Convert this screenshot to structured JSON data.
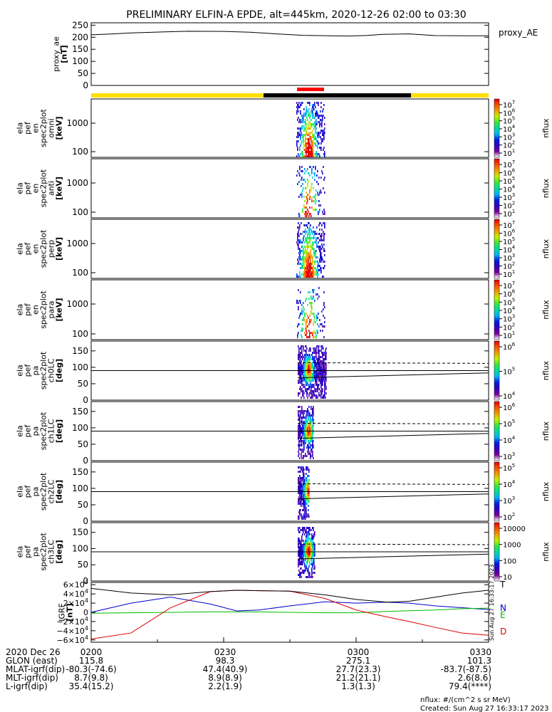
{
  "title": "PRELIMINARY ELFIN-A EPDE, alt=445km, 2020-12-26 02:00 to 03:30",
  "colors": {
    "science_zone": "#ff0000",
    "sunlit_bar": "#ffe000",
    "shadow_bar": "#000000",
    "trace": "#000000",
    "igrf_n": "#0000cc",
    "igrf_e": "#00bb00",
    "igrf_d": "#dd0000"
  },
  "chart_data": [
    {
      "type": "line",
      "id": "proxy_ae",
      "ylabel": [
        "proxy_ae",
        "[nT]"
      ],
      "legend": "proxy_AE",
      "ylim": [
        0,
        260
      ],
      "yticks": [
        "250",
        "200",
        "150",
        "100",
        "50",
        "0"
      ],
      "x_minutes": [
        0,
        4,
        9,
        16,
        22,
        30,
        36,
        42,
        48,
        54,
        58,
        62,
        66,
        72,
        78,
        84,
        90
      ],
      "values": [
        210,
        213,
        218,
        222,
        225,
        224,
        221,
        214,
        208,
        206,
        205,
        207,
        212,
        214,
        207,
        206,
        206
      ]
    },
    {
      "type": "heatmap",
      "id": "en_omni",
      "ylabel": [
        "ela",
        "pef",
        "en",
        "spec2plot",
        "omni",
        "[keV]"
      ],
      "ylog": true,
      "yticks": [
        "1000",
        "100"
      ],
      "colorbar": {
        "label": "nflux",
        "ticks": [
          "10^7",
          "10^6",
          "10^5",
          "10^4",
          "10^3",
          "10^2",
          "10^1"
        ]
      }
    },
    {
      "type": "heatmap",
      "id": "en_anti",
      "ylabel": [
        "ela",
        "pef",
        "en",
        "spec2plot",
        "anti",
        "[keV]"
      ],
      "ylog": true,
      "yticks": [
        "1000",
        "100"
      ],
      "colorbar": {
        "label": "nflux",
        "ticks": [
          "10^7",
          "10^6",
          "10^5",
          "10^4",
          "10^3",
          "10^2",
          "10^1"
        ]
      }
    },
    {
      "type": "heatmap",
      "id": "en_perp",
      "ylabel": [
        "ela",
        "pef",
        "en",
        "spec2plot",
        "perp",
        "[keV]"
      ],
      "ylog": true,
      "yticks": [
        "1000",
        "100"
      ],
      "colorbar": {
        "label": "nflux",
        "ticks": [
          "10^7",
          "10^6",
          "10^5",
          "10^4",
          "10^3",
          "10^2",
          "10^1"
        ]
      }
    },
    {
      "type": "heatmap",
      "id": "en_para",
      "ylabel": [
        "ela",
        "pef",
        "en",
        "spec2plot",
        "para",
        "[keV]"
      ],
      "ylog": true,
      "yticks": [
        "1000",
        "100"
      ],
      "colorbar": {
        "label": "nflux",
        "ticks": [
          "10^7",
          "10^6",
          "10^5",
          "10^4",
          "10^3",
          "10^2",
          "10^1"
        ]
      }
    },
    {
      "type": "heatmap",
      "id": "pa_ch0",
      "ylabel": [
        "ela",
        "pef",
        "pa",
        "spec2plot",
        "ch0LC",
        "[deg]"
      ],
      "ylim": [
        0,
        180
      ],
      "yticks": [
        "150",
        "100",
        "50",
        "0"
      ],
      "colorbar": {
        "label": "nflux",
        "ticks": [
          "10^6",
          "10^5",
          "10^4"
        ]
      }
    },
    {
      "type": "heatmap",
      "id": "pa_ch1",
      "ylabel": [
        "ela",
        "pef",
        "pa",
        "spec2plot",
        "ch1LC",
        "[deg]"
      ],
      "ylim": [
        0,
        180
      ],
      "yticks": [
        "150",
        "100",
        "50",
        "0"
      ],
      "colorbar": {
        "label": "nflux",
        "ticks": [
          "10^6",
          "10^5",
          "10^4",
          "10^3"
        ]
      }
    },
    {
      "type": "heatmap",
      "id": "pa_ch2",
      "ylabel": [
        "ela",
        "pef",
        "pa",
        "spec2plot",
        "ch2LC",
        "[deg]"
      ],
      "ylim": [
        0,
        180
      ],
      "yticks": [
        "150",
        "100",
        "50",
        "0"
      ],
      "colorbar": {
        "label": "nflux",
        "ticks": [
          "10^5",
          "10^4",
          "10^3",
          "10^2"
        ]
      }
    },
    {
      "type": "heatmap",
      "id": "pa_ch3",
      "ylabel": [
        "ela",
        "pef",
        "pa",
        "spec2plot",
        "ch3LC",
        "[deg]"
      ],
      "ylim": [
        0,
        180
      ],
      "yticks": [
        "150",
        "100",
        "50",
        "0"
      ],
      "colorbar": {
        "label": "nflux",
        "ticks": [
          "10000",
          "1000",
          "100",
          "10"
        ]
      }
    },
    {
      "type": "line",
      "id": "igrf",
      "ylabel": [
        "IGRF",
        "[nT]"
      ],
      "ylim": [
        -65000,
        65000
      ],
      "yticks": [
        "6×10^4",
        "4×10^4",
        "2×10^4",
        "0",
        "−2×10^4",
        "−4×10^4",
        "−6×10^4"
      ],
      "x_minutes": [
        0,
        9,
        18,
        27,
        33,
        38,
        45,
        53,
        60,
        67,
        72,
        78,
        84,
        90
      ],
      "series": [
        {
          "name": "N",
          "values": [
            0,
            20000,
            33000,
            18000,
            3000,
            5000,
            14000,
            23000,
            20000,
            22000,
            20000,
            14000,
            10000,
            6000
          ]
        },
        {
          "name": "E",
          "values": [
            -2000,
            -1000,
            0,
            1000,
            1000,
            1000,
            0,
            -1000,
            -1000,
            2000,
            3500,
            5000,
            8000,
            9000
          ]
        },
        {
          "name": "D",
          "values": [
            -58000,
            -45000,
            10000,
            45000,
            48000,
            47000,
            46000,
            30000,
            5000,
            -10000,
            -20000,
            -33000,
            -45000,
            -50000
          ]
        },
        {
          "name": "T",
          "values": [
            52000,
            42000,
            38000,
            45000,
            48000,
            47000,
            46000,
            38000,
            28000,
            22000,
            24000,
            33000,
            42000,
            48000
          ]
        }
      ]
    }
  ],
  "time_axis": {
    "rows": [
      {
        "label": "2020 Dec 26",
        "values": [
          "0200",
          "0230",
          "0300",
          "0330"
        ]
      },
      {
        "label": "GLON (east)",
        "values": [
          "115.8",
          "98.3",
          "275.1",
          "101.3"
        ]
      },
      {
        "label": "MLAT-igrf(dip)",
        "values": [
          "-80.3(-74.6)",
          "47.4(40.9)",
          "27.7(23.3)",
          "-83.7(-87.5)"
        ]
      },
      {
        "label": "MLT-igrf(dip)",
        "values": [
          "8.7(9.8)",
          "8.9(8.9)",
          "21.2(21.1)",
          "2.6(8.6)"
        ]
      },
      {
        "label": "L-igrf(dip)",
        "values": [
          "35.4(15.2)",
          "2.2(1.9)",
          "1.3(1.3)",
          "79.4(****)"
        ]
      }
    ]
  },
  "footer": {
    "units": "nflux: #/(cm^2 s sr MeV)",
    "created": "Created: Sun Aug 27 16:33:17 2023",
    "side_stamp": "Sun Aug 27 16:33:17 2023"
  }
}
